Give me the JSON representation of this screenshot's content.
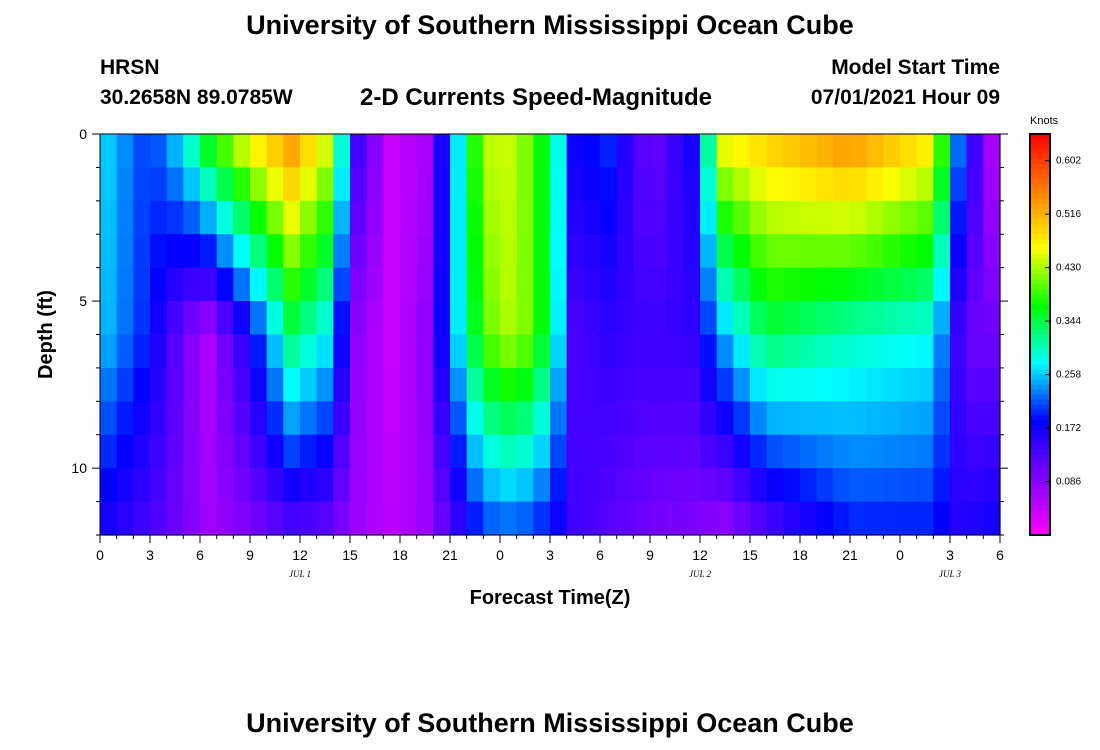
{
  "page": {
    "title_top": "University of Southern Mississippi Ocean Cube",
    "title_bottom": "University of Southern Mississippi Ocean Cube",
    "station_id": "HRSN",
    "station_coords": "30.2658N  89.0785W",
    "model_start_label": "Model Start Time",
    "model_start_value": "07/01/2021 Hour 09"
  },
  "colors": {
    "background": "#ffffff",
    "axis": "#000000",
    "colormap": [
      "#ff00ff",
      "#8000ff",
      "#0000ff",
      "#00ffff",
      "#00ff00",
      "#ffff00",
      "#ff8000",
      "#ff0000"
    ]
  },
  "chart_data": {
    "type": "heatmap",
    "title": "2-D Currents Speed-Magnitude",
    "xlabel": "Forecast Time(Z)",
    "ylabel": "Depth (ft)",
    "x_range_hours": [
      0,
      54
    ],
    "x_ticks": [
      {
        "h": 0,
        "label": "0"
      },
      {
        "h": 3,
        "label": "3"
      },
      {
        "h": 6,
        "label": "6"
      },
      {
        "h": 9,
        "label": "9"
      },
      {
        "h": 12,
        "label": "12"
      },
      {
        "h": 15,
        "label": "15"
      },
      {
        "h": 18,
        "label": "18"
      },
      {
        "h": 21,
        "label": "21"
      },
      {
        "h": 24,
        "label": "0"
      },
      {
        "h": 27,
        "label": "3"
      },
      {
        "h": 30,
        "label": "6"
      },
      {
        "h": 33,
        "label": "9"
      },
      {
        "h": 36,
        "label": "12"
      },
      {
        "h": 39,
        "label": "15"
      },
      {
        "h": 42,
        "label": "18"
      },
      {
        "h": 45,
        "label": "21"
      },
      {
        "h": 48,
        "label": "0"
      },
      {
        "h": 51,
        "label": "3"
      },
      {
        "h": 54,
        "label": "6"
      }
    ],
    "date_labels": [
      {
        "h": 12,
        "label": "JUL 1"
      },
      {
        "h": 36,
        "label": "JUL 2"
      },
      {
        "h": 51,
        "label": "JUL 3"
      }
    ],
    "y_range_ft": [
      0,
      12
    ],
    "y_ticks": [
      {
        "v": 0,
        "label": "0"
      },
      {
        "v": 5,
        "label": "5"
      },
      {
        "v": 10,
        "label": "10"
      }
    ],
    "colorbar": {
      "unit": "Knots",
      "range": [
        0.0,
        0.645
      ],
      "ticks": [
        0.602,
        0.516,
        0.43,
        0.344,
        0.258,
        0.172,
        0.086
      ],
      "tick_labels": [
        "0.602",
        "0.516",
        "0.430",
        "0.344",
        "0.258",
        "0.172",
        "0.086"
      ]
    },
    "grid": {
      "x_step_hours": 1,
      "layers": 12,
      "columns": [
        {
          "h": 0,
          "top": 0.27,
          "mid": 0.26,
          "bottom": 0.17
        },
        {
          "h": 3,
          "top": 0.2,
          "mid": 0.19,
          "bottom": 0.13
        },
        {
          "h": 5,
          "top": 0.28,
          "mid": 0.1,
          "bottom": 0.1
        },
        {
          "h": 6.5,
          "top": 0.38,
          "mid": 0.06,
          "bottom": 0.07
        },
        {
          "h": 9,
          "top": 0.48,
          "mid": 0.17,
          "bottom": 0.09
        },
        {
          "h": 11.5,
          "top": 0.54,
          "mid": 0.33,
          "bottom": 0.12
        },
        {
          "h": 13.5,
          "top": 0.46,
          "mid": 0.28,
          "bottom": 0.11
        },
        {
          "h": 15.5,
          "top": 0.14,
          "mid": 0.08,
          "bottom": 0.07
        },
        {
          "h": 17.5,
          "top": 0.04,
          "mid": 0.04,
          "bottom": 0.05
        },
        {
          "h": 19.5,
          "top": 0.06,
          "mid": 0.08,
          "bottom": 0.07
        },
        {
          "h": 21.5,
          "top": 0.27,
          "mid": 0.27,
          "bottom": 0.14
        },
        {
          "h": 23,
          "top": 0.44,
          "mid": 0.4,
          "bottom": 0.2
        },
        {
          "h": 25,
          "top": 0.44,
          "mid": 0.44,
          "bottom": 0.21
        },
        {
          "h": 27,
          "top": 0.34,
          "mid": 0.34,
          "bottom": 0.18
        },
        {
          "h": 28.5,
          "top": 0.18,
          "mid": 0.13,
          "bottom": 0.14
        },
        {
          "h": 30.5,
          "top": 0.2,
          "mid": 0.15,
          "bottom": 0.12
        },
        {
          "h": 33,
          "top": 0.1,
          "mid": 0.14,
          "bottom": 0.1
        },
        {
          "h": 35.5,
          "top": 0.17,
          "mid": 0.15,
          "bottom": 0.09
        },
        {
          "h": 37.5,
          "top": 0.47,
          "mid": 0.25,
          "bottom": 0.07
        },
        {
          "h": 40,
          "top": 0.5,
          "mid": 0.34,
          "bottom": 0.12
        },
        {
          "h": 45,
          "top": 0.55,
          "mid": 0.3,
          "bottom": 0.19
        },
        {
          "h": 50,
          "top": 0.48,
          "mid": 0.28,
          "bottom": 0.19
        },
        {
          "h": 51.5,
          "top": 0.23,
          "mid": 0.14,
          "bottom": 0.16
        },
        {
          "h": 53,
          "top": 0.1,
          "mid": 0.09,
          "bottom": 0.17
        },
        {
          "h": 54,
          "top": 0.02,
          "mid": 0.12,
          "bottom": 0.18
        }
      ]
    }
  }
}
